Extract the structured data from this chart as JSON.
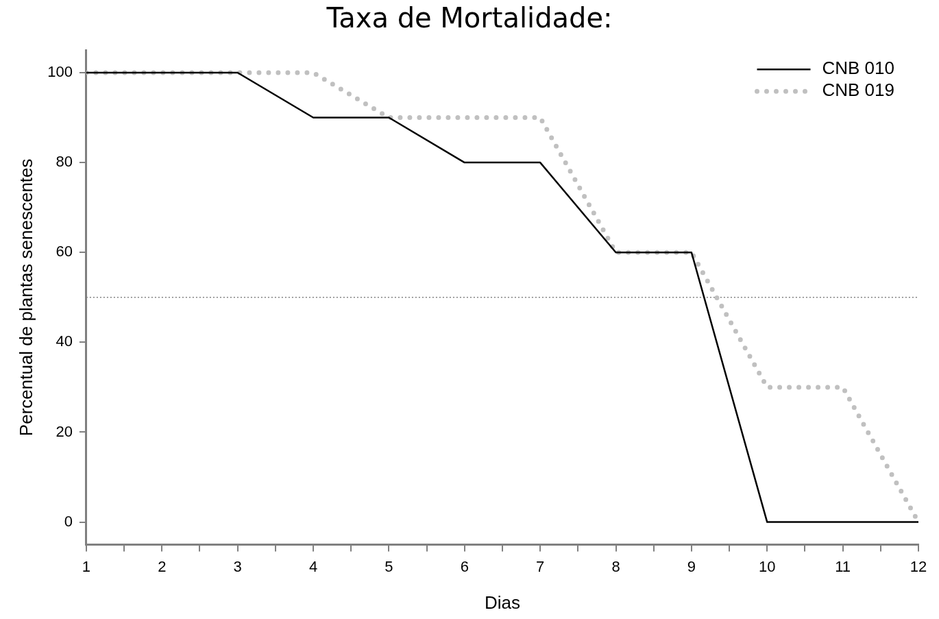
{
  "chart_data": {
    "type": "line",
    "title": "Taxa de Mortalidade:",
    "xlabel": "Dias",
    "ylabel": "Percentual de plantas senescentes",
    "x": [
      1,
      2,
      3,
      4,
      5,
      6,
      7,
      8,
      9,
      10,
      11,
      12
    ],
    "series": [
      {
        "name": "CNB 010",
        "color": "#000000",
        "line_style": "solid",
        "values": [
          100,
          100,
          100,
          90,
          90,
          80,
          80,
          60,
          60,
          0,
          0,
          0
        ]
      },
      {
        "name": "CNB 019",
        "color": "#c0c0c0",
        "line_style": "dotted",
        "values": [
          100,
          100,
          100,
          100,
          90,
          90,
          90,
          60,
          60,
          30,
          30,
          0
        ]
      }
    ],
    "xlim": [
      1,
      12
    ],
    "ylim": [
      -5,
      105
    ],
    "xticks": [
      1,
      {
        "value": 1.5,
        "label": null
      },
      2,
      {
        "value": 2.5,
        "label": null
      },
      3,
      {
        "value": 3.5,
        "label": null
      },
      4,
      {
        "value": 4.5,
        "label": null
      },
      5,
      {
        "value": 5.5,
        "label": null
      },
      6,
      {
        "value": 6.5,
        "label": null
      },
      7,
      {
        "value": 7.5,
        "label": null
      },
      8,
      {
        "value": 8.5,
        "label": null
      },
      9,
      {
        "value": 9.5,
        "label": null
      },
      10,
      {
        "value": 10.5,
        "label": null
      },
      11,
      {
        "value": 11.5,
        "label": null
      },
      12
    ],
    "yticks": [
      0,
      20,
      40,
      60,
      80,
      100
    ],
    "ref_lines": [
      {
        "axis": "y",
        "value": 50,
        "label": null,
        "color": "#808080",
        "line_style": "dotted"
      }
    ],
    "grid": false,
    "legend": "top right",
    "marker": "none"
  }
}
